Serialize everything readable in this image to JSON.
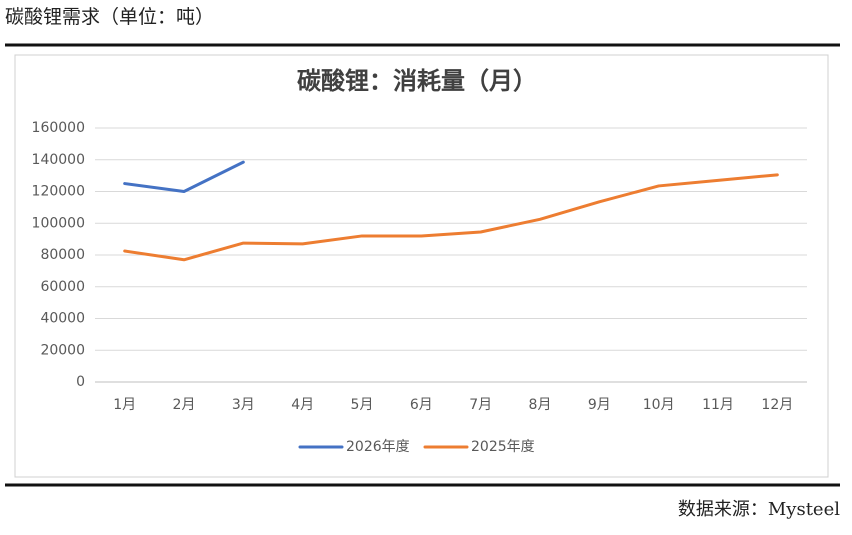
{
  "header": "碳酸锂需求（单位：吨）",
  "source": "数据来源：Mysteel",
  "chart_data": {
    "type": "line",
    "title": "碳酸锂：消耗量（月）",
    "categories": [
      "1月",
      "2月",
      "3月",
      "4月",
      "5月",
      "6月",
      "7月",
      "8月",
      "9月",
      "10月",
      "11月",
      "12月"
    ],
    "series": [
      {
        "name": "2026年度",
        "color": "#4472c4",
        "values": [
          125000,
          120000,
          138500,
          null,
          null,
          null,
          null,
          null,
          null,
          null,
          null,
          null
        ]
      },
      {
        "name": "2025年度",
        "color": "#ed7d31",
        "values": [
          82500,
          77000,
          87500,
          87000,
          92000,
          92000,
          94500,
          102500,
          113500,
          123500,
          127000,
          130500
        ]
      }
    ],
    "ylim": [
      0,
      160000
    ],
    "yticks": [
      0,
      20000,
      40000,
      60000,
      80000,
      100000,
      120000,
      140000,
      160000
    ],
    "grid": true,
    "legend": "bottom"
  }
}
